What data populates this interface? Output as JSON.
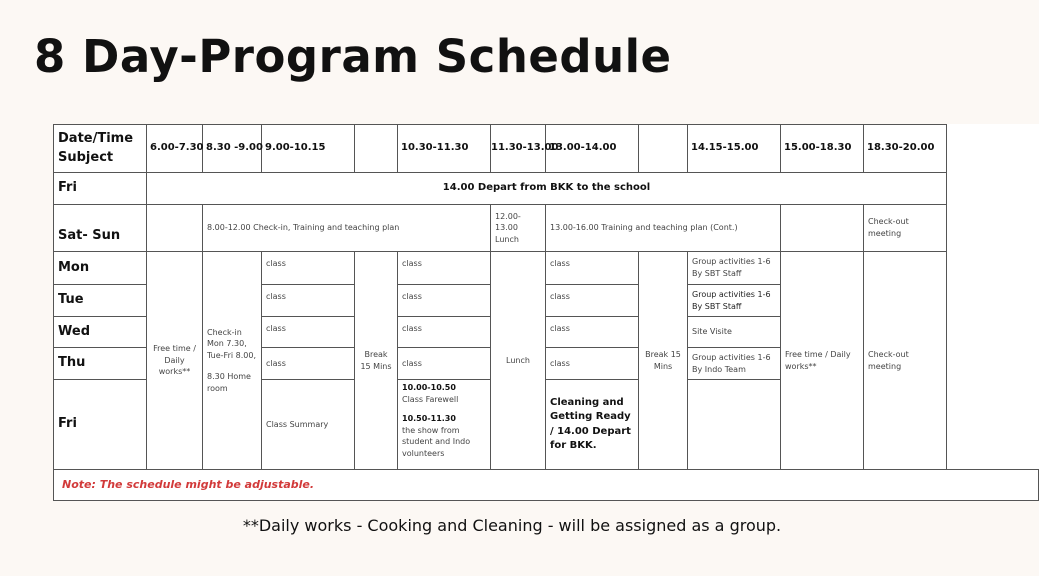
{
  "title": "8 Day-Program Schedule",
  "header": {
    "corner": "Date/Time Subject",
    "times": [
      "6.00-7.30",
      "8.30 -9.00",
      "9.00-10.15",
      "",
      "10.30-11.30",
      "11.30-13.00",
      "13.00-14.00",
      "",
      "14.15-15.00",
      "15.00-18.30",
      "18.30-20.00"
    ]
  },
  "fri1": {
    "day": "Fri",
    "text": "14.00 Depart from BKK to the school"
  },
  "satsun": {
    "day": "Sat- Sun",
    "checkin": "8.00-12.00 Check-in, Training and teaching plan",
    "lunch": "12.00-13.00 Lunch",
    "training": "13.00-16.00 Training and teaching plan (Cont.)",
    "checkout": "Check-out meeting"
  },
  "days": [
    "Mon",
    "Tue",
    "Wed",
    "Thu",
    "Fri"
  ],
  "week": {
    "free_time": "Free time / Daily works**",
    "checkin": "Check-in Mon 7.30, Tue-Fri 8.00,",
    "homeroom": "8.30 Home room",
    "class": "class",
    "break1": "Break 15 Mins",
    "lunch": "Lunch",
    "break2": "Break 15 Mins",
    "group": [
      "Group activities 1-6 By SBT Staff",
      "Group activities 1-6 By SBT Staff",
      "Site Visite",
      "Group activities 1-6 By Indo Team"
    ],
    "free_time2": "Free time / Daily works**",
    "checkout": "Check-out meeting",
    "summary": "Class Summary",
    "farewell_time": "10.00-10.50",
    "farewell": "Class Farewell",
    "show_time": "10.50-11.30",
    "show": "the show from student and Indo volunteers",
    "cleaning": "Cleaning and Getting Ready / 14.00 Depart for BKK."
  },
  "note": "Note: The schedule might be adjustable.",
  "footer": "**Daily works - Cooking and Cleaning - will be assigned as a group.",
  "colors": {
    "note": "#d23a3a",
    "background": "#fcf8f4"
  }
}
